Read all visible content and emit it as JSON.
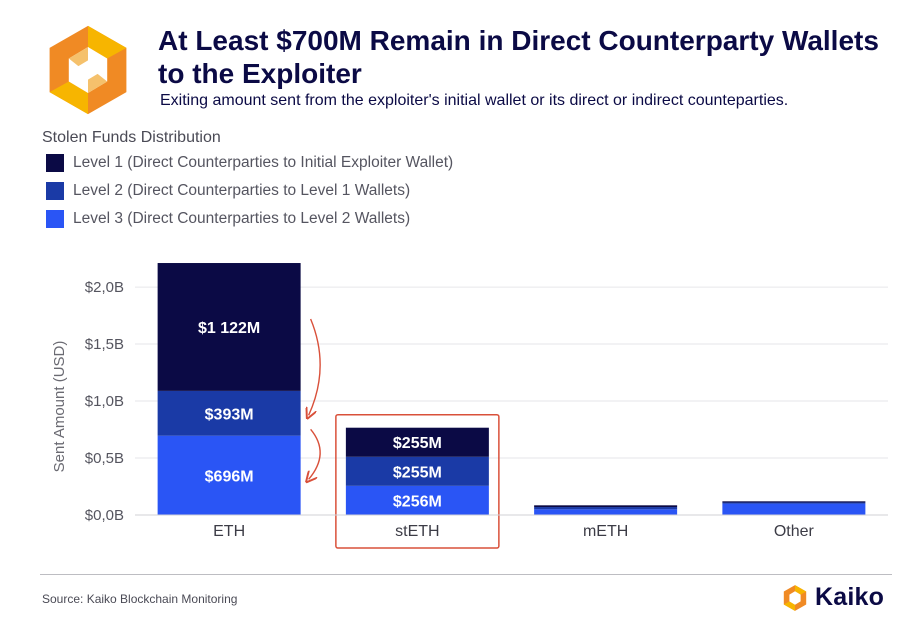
{
  "header": {
    "title": "At Least $700M Remain in Direct Counterparty Wallets to the Exploiter",
    "subtitle": "Exiting amount sent from the exploiter's initial wallet or its direct or indirect counteparties."
  },
  "legend": {
    "title": "Stolen Funds Distribution",
    "items": [
      {
        "label": "Level 1 (Direct Counterparties to Initial Exploiter Wallet)",
        "color": "#0b0a45"
      },
      {
        "label": "Level 2 (Direct Counterparties to Level 1 Wallets)",
        "color": "#1a3aa6"
      },
      {
        "label": "Level 3 (Direct Counterparties to Level 2 Wallets)",
        "color": "#2a55f5"
      }
    ]
  },
  "footer": {
    "source": "Source: Kaiko Blockchain Monitoring",
    "brand": "Kaiko"
  },
  "colors": {
    "brand_orange": "#f08a24",
    "brand_yellow": "#f7b500",
    "highlight_box": "#d9503a",
    "arrow": "#d9503a"
  },
  "chart_data": {
    "type": "bar",
    "stacked": true,
    "categories": [
      "ETH",
      "stETH",
      "mETH",
      "Other"
    ],
    "series": [
      {
        "name": "Level 3 (Direct Counterparties to Level 2 Wallets)",
        "color": "#2a55f5",
        "values": [
          0.696,
          0.256,
          0.05,
          0.1
        ],
        "labels": [
          "$696M",
          "$256M",
          "",
          ""
        ]
      },
      {
        "name": "Level 2 (Direct Counterparties to Level 1 Wallets)",
        "color": "#1a3aa6",
        "values": [
          0.393,
          0.255,
          0.02,
          0.01
        ],
        "labels": [
          "$393M",
          "$255M",
          "",
          ""
        ]
      },
      {
        "name": "Level 1 (Direct Counterparties to Initial Exploiter Wallet)",
        "color": "#0b0a45",
        "values": [
          1.122,
          0.255,
          0.015,
          0.01
        ],
        "labels": [
          "$1 122M",
          "$255M",
          "",
          ""
        ]
      }
    ],
    "ylabel": "Sent Amount (USD)",
    "yticks": [
      0,
      0.5,
      1.0,
      1.5,
      2.0
    ],
    "ytick_labels": [
      "$0,0B",
      "$0,5B",
      "$1,0B",
      "$1,5B",
      "$2,0B"
    ],
    "ylim": [
      0,
      2.22
    ],
    "grid": true,
    "highlight_category": "stETH",
    "legend_position": "top-left"
  }
}
